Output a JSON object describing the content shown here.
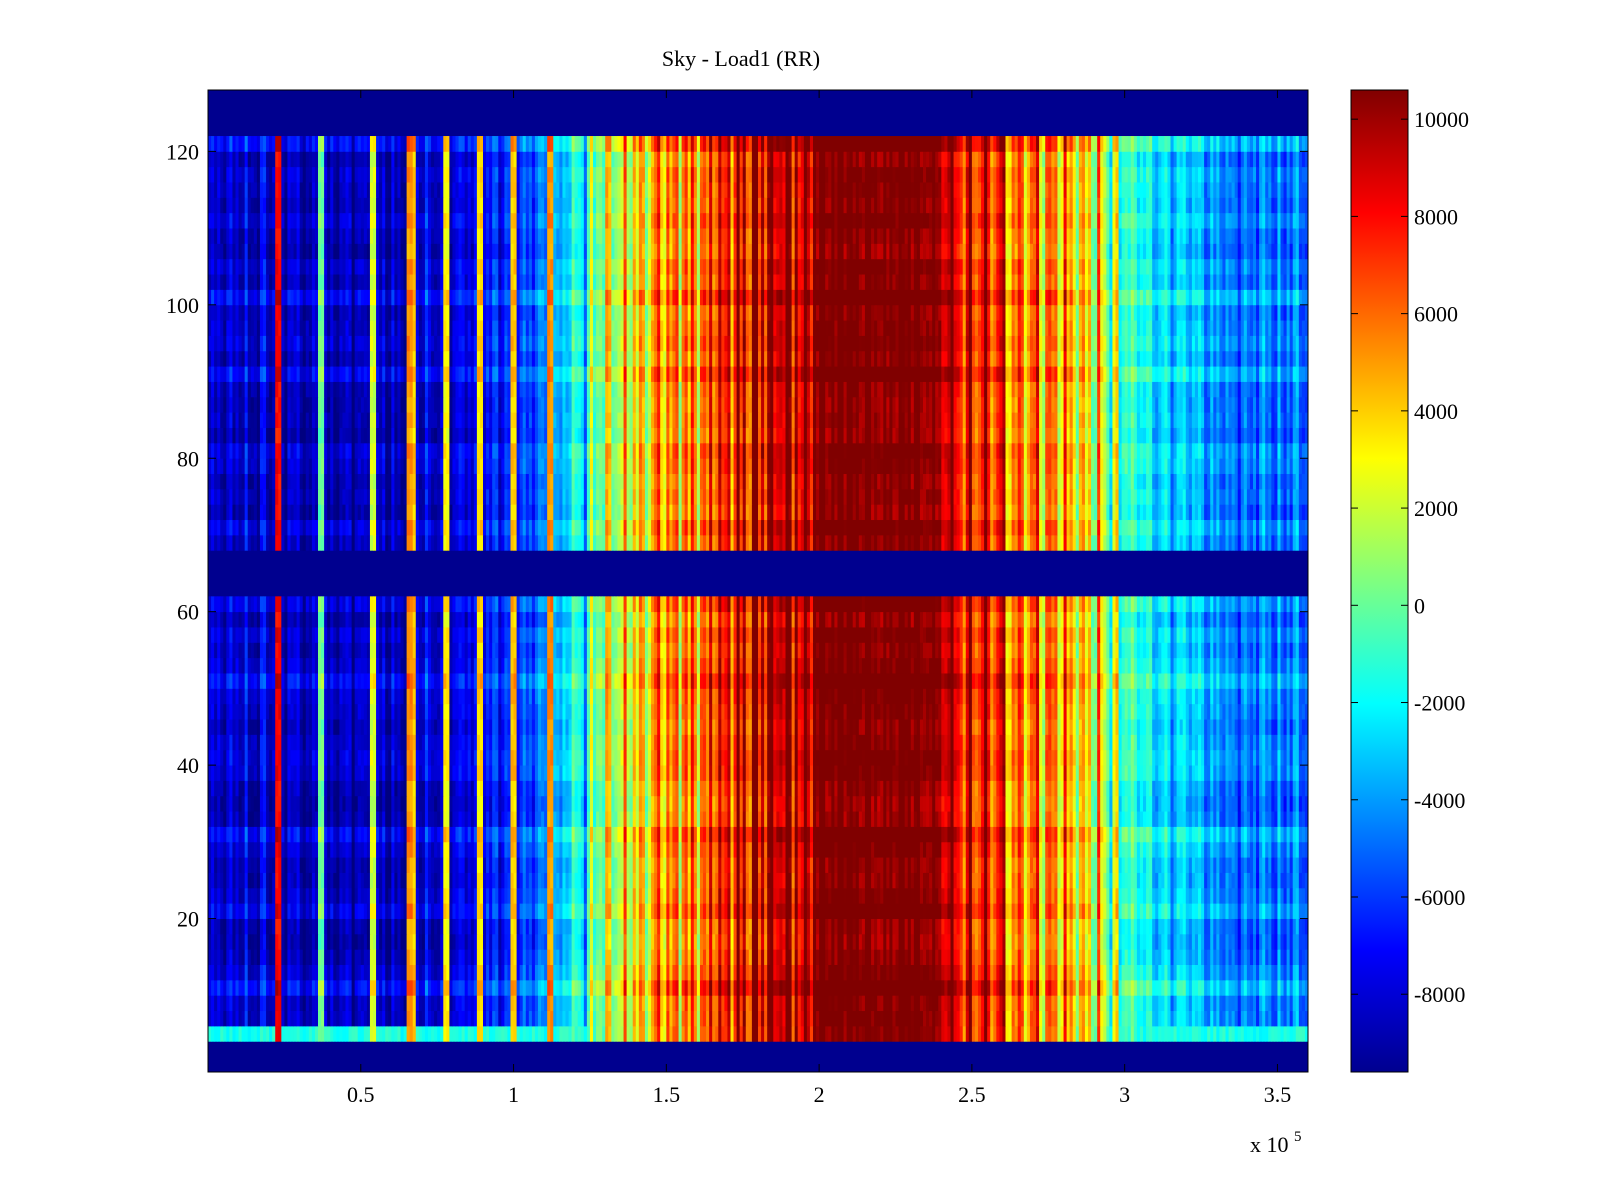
{
  "chart_data": {
    "type": "heatmap",
    "title": "Sky - Load1 (RR)",
    "xlabel": "",
    "ylabel": "",
    "x_multiplier_label": "x 10",
    "x_multiplier_exponent": "5",
    "xlim": [
      0,
      360000
    ],
    "ylim": [
      0,
      128
    ],
    "x_ticks": [
      {
        "value": 50000,
        "label": "0.5"
      },
      {
        "value": 100000,
        "label": "1"
      },
      {
        "value": 150000,
        "label": "1.5"
      },
      {
        "value": 200000,
        "label": "2"
      },
      {
        "value": 250000,
        "label": "2.5"
      },
      {
        "value": 300000,
        "label": "3"
      },
      {
        "value": 350000,
        "label": "3.5"
      }
    ],
    "y_ticks": [
      {
        "value": 20,
        "label": "20"
      },
      {
        "value": 40,
        "label": "40"
      },
      {
        "value": 60,
        "label": "60"
      },
      {
        "value": 80,
        "label": "80"
      },
      {
        "value": 100,
        "label": "100"
      },
      {
        "value": 120,
        "label": "120"
      }
    ],
    "colormap": "jet",
    "color_range": [
      -9600,
      10600
    ],
    "colorbar": {
      "placement": "right",
      "ticks": [
        {
          "value": 10000,
          "label": "10000"
        },
        {
          "value": 8000,
          "label": "8000"
        },
        {
          "value": 6000,
          "label": "6000"
        },
        {
          "value": 4000,
          "label": "4000"
        },
        {
          "value": 2000,
          "label": "2000"
        },
        {
          "value": 0,
          "label": "0"
        },
        {
          "value": -2000,
          "label": "-2000"
        },
        {
          "value": -4000,
          "label": "-4000"
        },
        {
          "value": -6000,
          "label": "-6000"
        },
        {
          "value": -8000,
          "label": "-8000"
        }
      ]
    },
    "masked_rows": [
      [
        0,
        3
      ],
      [
        61,
        68
      ],
      [
        121,
        128
      ]
    ],
    "masked_value": -9600,
    "bright_row_band": [
      3,
      4
    ],
    "column_profile": [
      {
        "x": 0,
        "value": -8600
      },
      {
        "x": 20000,
        "value": -8200
      },
      {
        "x": 40000,
        "value": -8800
      },
      {
        "x": 60000,
        "value": -8400
      },
      {
        "x": 80000,
        "value": -8000
      },
      {
        "x": 100000,
        "value": -6500
      },
      {
        "x": 110000,
        "value": -5000
      },
      {
        "x": 120000,
        "value": -2500
      },
      {
        "x": 130000,
        "value": 1000
      },
      {
        "x": 140000,
        "value": 3500
      },
      {
        "x": 150000,
        "value": 4500
      },
      {
        "x": 160000,
        "value": 6000
      },
      {
        "x": 170000,
        "value": 7500
      },
      {
        "x": 180000,
        "value": 8500
      },
      {
        "x": 190000,
        "value": 9500
      },
      {
        "x": 200000,
        "value": 10200
      },
      {
        "x": 210000,
        "value": 10600
      },
      {
        "x": 220000,
        "value": 10600
      },
      {
        "x": 230000,
        "value": 10000
      },
      {
        "x": 240000,
        "value": 9200
      },
      {
        "x": 250000,
        "value": 7500
      },
      {
        "x": 260000,
        "value": 6500
      },
      {
        "x": 270000,
        "value": 5500
      },
      {
        "x": 280000,
        "value": 4500
      },
      {
        "x": 290000,
        "value": 2500
      },
      {
        "x": 300000,
        "value": -1000
      },
      {
        "x": 310000,
        "value": -2500
      },
      {
        "x": 320000,
        "value": -3500
      },
      {
        "x": 330000,
        "value": -4500
      },
      {
        "x": 340000,
        "value": -5000
      },
      {
        "x": 350000,
        "value": -5000
      },
      {
        "x": 360000,
        "value": -4800
      }
    ],
    "strong_stripes": [
      {
        "x": 23000,
        "value": 8000
      },
      {
        "x": 37000,
        "value": 0
      },
      {
        "x": 54000,
        "value": 2000
      },
      {
        "x": 66000,
        "value": 5000
      },
      {
        "x": 67500,
        "value": 4000
      },
      {
        "x": 78000,
        "value": 3000
      },
      {
        "x": 89000,
        "value": 3500
      },
      {
        "x": 100000,
        "value": 4000
      },
      {
        "x": 112000,
        "value": 5000
      }
    ]
  }
}
